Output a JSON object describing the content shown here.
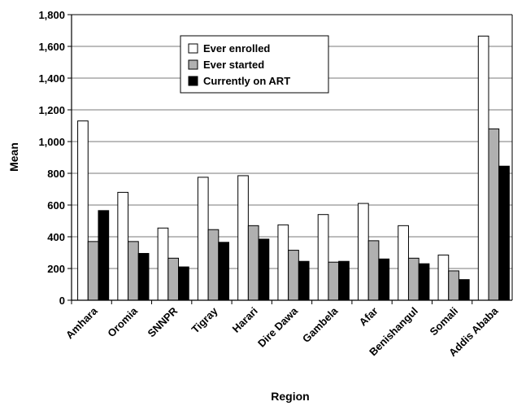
{
  "chart_data": {
    "type": "bar",
    "xlabel": "Region",
    "ylabel": "Mean",
    "ylim": [
      0,
      1800
    ],
    "yticks": [
      "0",
      "200",
      "400",
      "600",
      "800",
      "1,000",
      "1,200",
      "1,400",
      "1,600",
      "1,800"
    ],
    "grid": true,
    "legend_position": "top-center",
    "categories": [
      "Amhara",
      "Oromia",
      "SNNPR",
      "Tigray",
      "Harari",
      "Dire Dawa",
      "Gambela",
      "Afar",
      "Benishangul",
      "Somali",
      "Addis Ababa"
    ],
    "series": [
      {
        "name": "Ever enrolled",
        "color": "#ffffff",
        "values": [
          1130,
          680,
          455,
          775,
          785,
          475,
          540,
          610,
          470,
          285,
          1665
        ]
      },
      {
        "name": "Ever started",
        "color": "#b0b0b0",
        "values": [
          370,
          370,
          265,
          445,
          470,
          315,
          240,
          375,
          265,
          185,
          1080
        ]
      },
      {
        "name": "Currently on ART",
        "color": "#000000",
        "values": [
          565,
          295,
          210,
          365,
          385,
          245,
          245,
          260,
          230,
          130,
          845
        ]
      }
    ]
  }
}
